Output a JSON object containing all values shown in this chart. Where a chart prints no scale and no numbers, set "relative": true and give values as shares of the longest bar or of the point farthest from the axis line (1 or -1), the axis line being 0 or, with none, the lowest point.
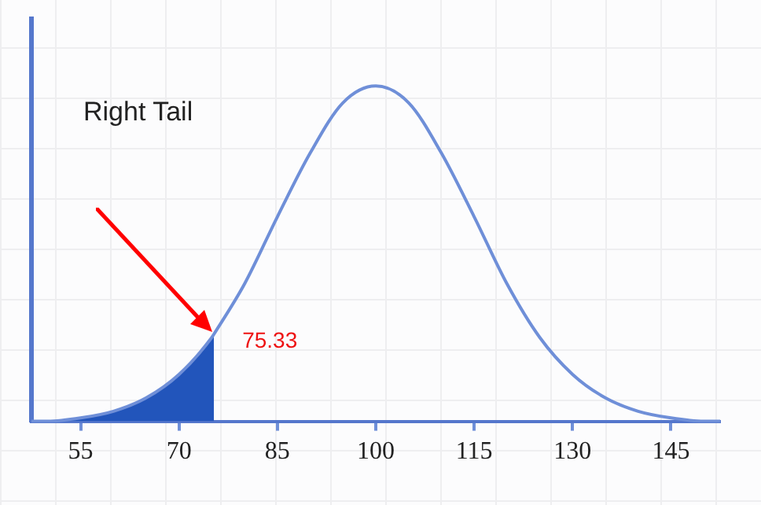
{
  "chart_data": {
    "type": "line",
    "relative": true,
    "xlim": [
      47.5,
      152.5
    ],
    "xticks": [
      55,
      70,
      85,
      100,
      115,
      130,
      145
    ],
    "series": [
      {
        "color": "#6f8fd8",
        "x": [
          47.5,
          50,
          55,
          60,
          65,
          70,
          75,
          75.33,
          80,
          85,
          90,
          95,
          100,
          105,
          110,
          115,
          120,
          125,
          130,
          135,
          140,
          145,
          150,
          152.5
        ],
        "values": [
          0,
          0,
          0.01,
          0.03,
          0.07,
          0.14,
          0.25,
          0.26,
          0.41,
          0.61,
          0.8,
          0.95,
          1,
          0.95,
          0.8,
          0.61,
          0.41,
          0.25,
          0.14,
          0.07,
          0.03,
          0.01,
          0,
          0
        ]
      },
      {
        "type": "area",
        "color": "#2255bb",
        "x": [
          47.5,
          50,
          55,
          60,
          65,
          70,
          75,
          75.33
        ],
        "values": [
          0,
          0,
          0.01,
          0.03,
          0.07,
          0.14,
          0.25,
          0.26
        ]
      }
    ],
    "annotations": [
      "Right Tail",
      {
        "text": "75.33",
        "x": 75.33,
        "y": 0.26
      }
    ],
    "grid": false,
    "legend": false,
    "marker": "none",
    "line_style": "solid"
  }
}
